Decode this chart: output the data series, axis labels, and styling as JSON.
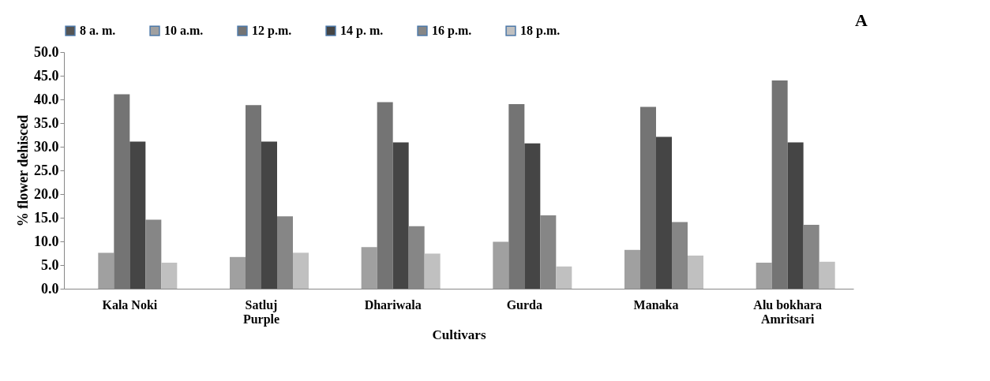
{
  "chart_data": {
    "type": "bar",
    "xlabel": "Cultivars",
    "ylabel": "% flower dehisced",
    "categories": [
      "Kala Noki",
      "Satluj Purple",
      "Dhariwala",
      "Gurda",
      "Manaka",
      "Alu bokhara Amritsari"
    ],
    "series": [
      {
        "name": "8 a. m.",
        "color": "#555555",
        "values": [
          0,
          0,
          0,
          0,
          0,
          0
        ]
      },
      {
        "name": "10 a.m.",
        "color": "#a0a0a0",
        "values": [
          7.6,
          6.7,
          8.8,
          9.9,
          8.2,
          5.5
        ]
      },
      {
        "name": "12 p.m.",
        "color": "#747474",
        "values": [
          41.1,
          38.8,
          39.4,
          39.0,
          38.4,
          44.0
        ]
      },
      {
        "name": "14 p. m.",
        "color": "#454545",
        "values": [
          31.1,
          31.1,
          30.9,
          30.7,
          32.1,
          30.9
        ]
      },
      {
        "name": "16 p.m.",
        "color": "#868686",
        "values": [
          14.6,
          15.3,
          13.2,
          15.5,
          14.1,
          13.5
        ]
      },
      {
        "name": "18 p.m.",
        "color": "#c0c0c0",
        "values": [
          5.5,
          7.6,
          7.4,
          4.7,
          7.0,
          5.7
        ]
      }
    ],
    "ylim": [
      0,
      50
    ],
    "yticks": [
      {
        "value": 0,
        "label": "0.0"
      },
      {
        "value": 5,
        "label": "5.0"
      },
      {
        "value": 10,
        "label": "10.0"
      },
      {
        "value": 15,
        "label": "15.0"
      },
      {
        "value": 20,
        "label": "20.0"
      },
      {
        "value": 25,
        "label": "25.0"
      },
      {
        "value": 30,
        "label": "30.0"
      },
      {
        "value": 35,
        "label": "35.0"
      },
      {
        "value": 40,
        "label": "40.0"
      },
      {
        "value": 45,
        "label": "45.0"
      },
      {
        "value": 50,
        "label": "50.0"
      }
    ],
    "legend": "top",
    "grid": false,
    "annotations": [
      "A"
    ]
  }
}
